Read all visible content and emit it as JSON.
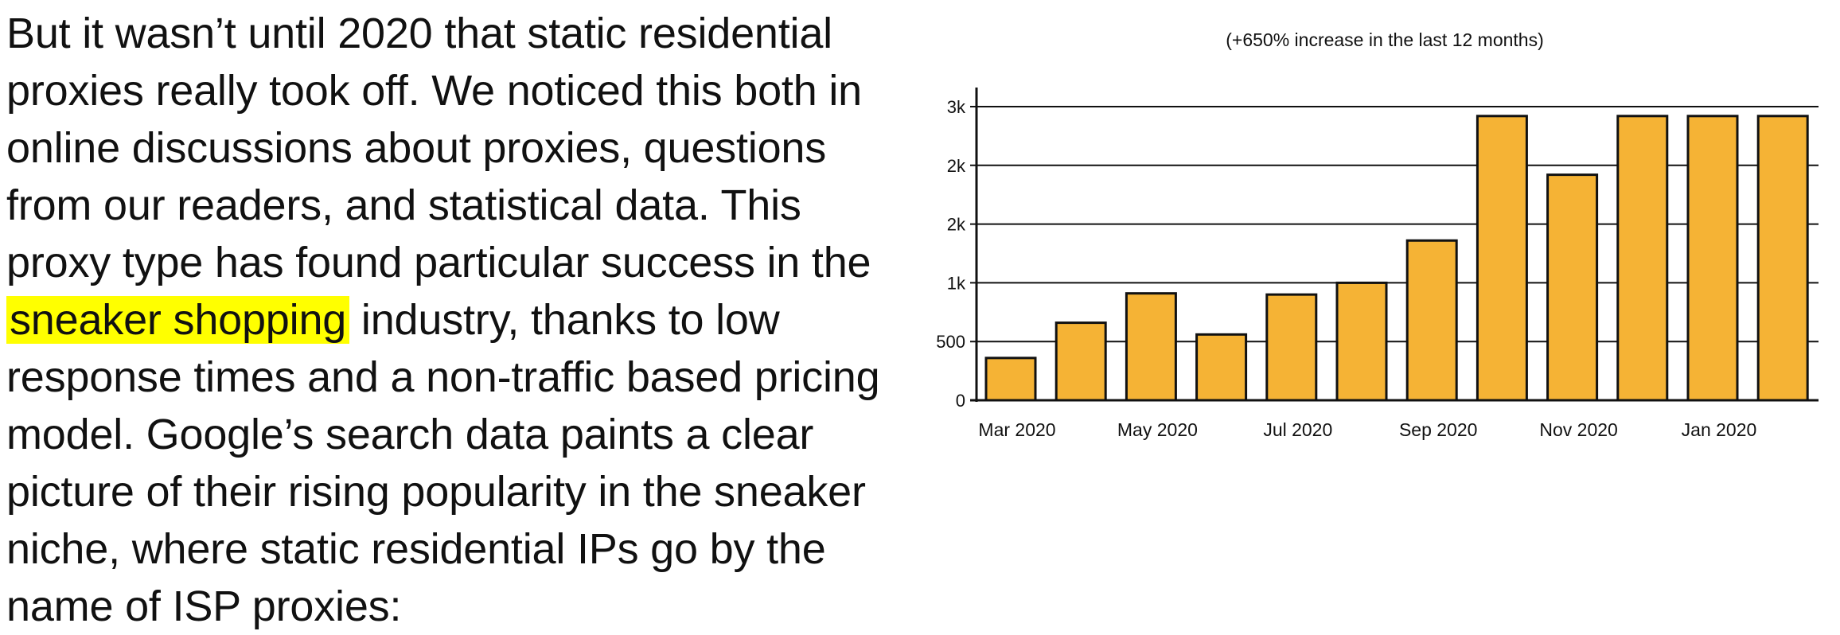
{
  "article": {
    "paragraph_before": "But it wasn’t until 2020 that static residential proxies really took off. We noticed this both in online discussions about proxies, questions from our readers, and statistical data. This proxy type has found particular success in the ",
    "highlight": "sneaker shopping",
    "paragraph_after": " industry, thanks to low response times and a non-traffic based pricing model. Google’s search data paints a clear picture of their rising popularity in the sneaker niche, where static residential IPs go by the name of ISP proxies:"
  },
  "colors": {
    "highlight": "#ffff00",
    "bar_fill": "#f5b335",
    "bar_stroke": "#111111"
  },
  "chart_data": {
    "type": "bar",
    "title": "(+650% increase in the last 12 months)",
    "xlabel": "",
    "ylabel": "",
    "ylim": [
      0,
      2500
    ],
    "grid": true,
    "yticks": [
      {
        "value": 0,
        "label": "0"
      },
      {
        "value": 500,
        "label": "500"
      },
      {
        "value": 1000,
        "label": "1k"
      },
      {
        "value": 1500,
        "label": "2k"
      },
      {
        "value": 2000,
        "label": "2k"
      },
      {
        "value": 2500,
        "label": "3k"
      }
    ],
    "xticks": [
      "Mar 2020",
      "May 2020",
      "Jul 2020",
      "Sep 2020",
      "Nov 2020",
      "Jan 2020"
    ],
    "values": [
      360,
      660,
      910,
      560,
      900,
      1000,
      1360,
      2420,
      1920,
      2420,
      2420,
      2420
    ]
  }
}
